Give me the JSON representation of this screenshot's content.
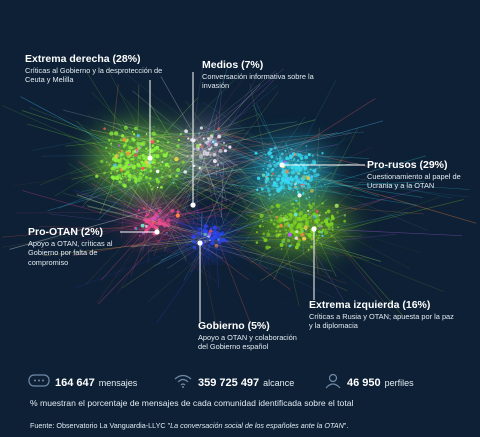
{
  "communities": [
    {
      "id": "extrema-derecha",
      "title": "Extrema derecha (28%)",
      "description": "Críticas al Gobierno y la desprotección de Ceuta y Melilla",
      "share_percent": 28,
      "color": "#8cf23c"
    },
    {
      "id": "medios",
      "title": "Medios (7%)",
      "description": "Conversación informativa sobre la invasión",
      "share_percent": 7,
      "color": "#e9e4f5"
    },
    {
      "id": "pro-rusos",
      "title": "Pro-rusos (29%)",
      "description": "Cuestionamiento al papel de Ucrania y a la OTAN",
      "share_percent": 29,
      "color": "#38d9f0"
    },
    {
      "id": "pro-otan",
      "title": "Pro-OTAN (2%)",
      "description": "Apoyo a OTAN, críticas al Gobierno por falta de compromiso",
      "share_percent": 2,
      "color": "#f04a90"
    },
    {
      "id": "gobierno",
      "title": "Gobierno (5%)",
      "description": "Apoyo a OTAN y colaboración del Gobierno español",
      "share_percent": 5,
      "color": "#2a46f0"
    },
    {
      "id": "extrema-izquierda",
      "title": "Extrema izquierda (16%)",
      "description": "Críticas a Rusia y OTAN; apuesta por la paz y la diplomacia",
      "share_percent": 16,
      "color": "#7ed321"
    }
  ],
  "stats": [
    {
      "id": "mensajes",
      "icon": "chat-bubble-icon",
      "value": "164 647",
      "label": "mensajes"
    },
    {
      "id": "alcance",
      "icon": "wifi-signal-icon",
      "value": "359 725 497",
      "label": "alcance"
    },
    {
      "id": "perfiles",
      "icon": "user-profile-icon",
      "value": "46 950",
      "label": "perfiles"
    }
  ],
  "note": "% muestran el porcentaje de mensajes de cada comunidad identificada sobre el total",
  "source": {
    "prefix": "Fuente: Observatorio La Vanguardia-LLYC \"",
    "title": "La conversación social de los españoles ante la OTAN",
    "suffix": "\"."
  },
  "colors": {
    "background": "#0d2035",
    "text": "#ffffff",
    "accent": "#ffffff"
  }
}
